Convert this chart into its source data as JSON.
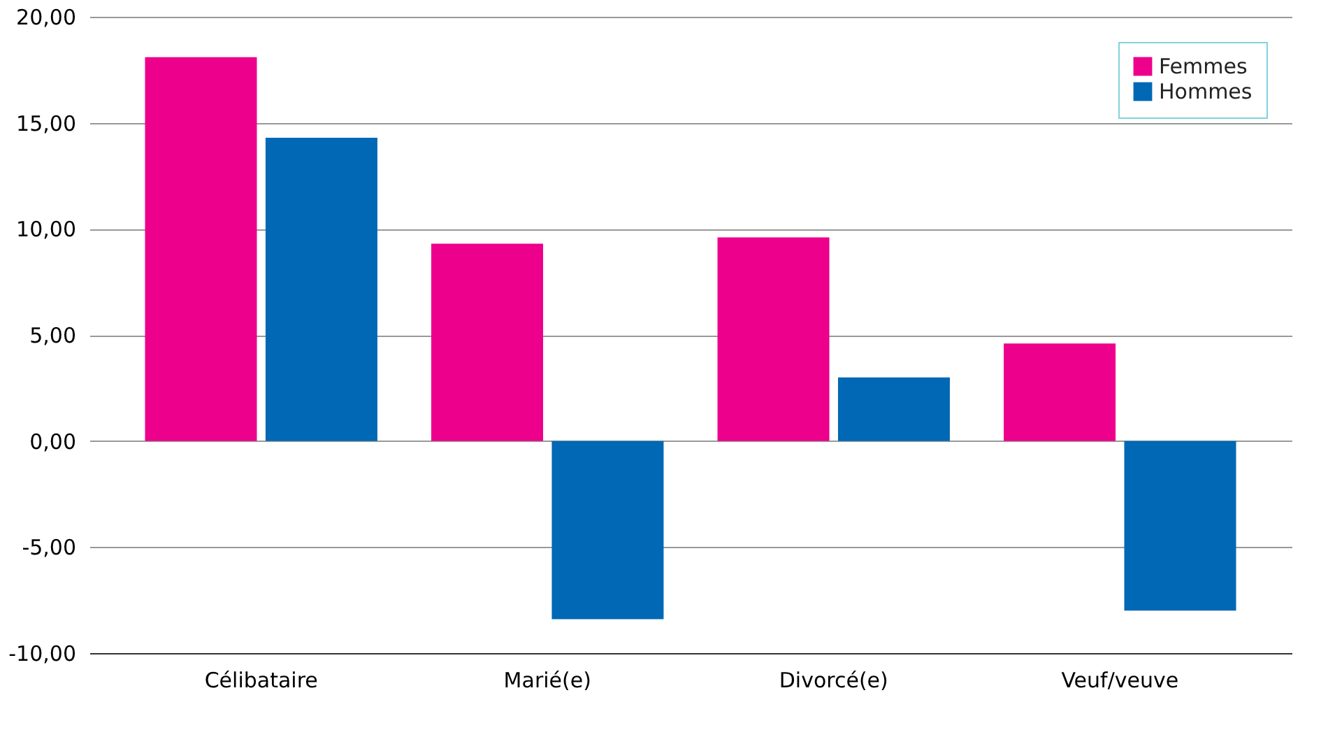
{
  "chart_data": {
    "type": "bar",
    "categories": [
      "Célibataire",
      "Marié(e)",
      "Divorcé(e)",
      "Veuf/veuve"
    ],
    "series": [
      {
        "name": "Femmes",
        "color": "#ec008c",
        "values": [
          18.1,
          9.3,
          9.6,
          4.6
        ]
      },
      {
        "name": "Hommes",
        "color": "#0068b4",
        "values": [
          14.3,
          -8.4,
          3.0,
          -8.0
        ]
      }
    ],
    "ylim": [
      -10,
      20
    ],
    "yticks": [
      {
        "value": -10,
        "label": "-10,00"
      },
      {
        "value": -5,
        "label": "-5,00"
      },
      {
        "value": 0,
        "label": "0,00"
      },
      {
        "value": 5,
        "label": "5,00"
      },
      {
        "value": 10,
        "label": "10,00"
      },
      {
        "value": 15,
        "label": "15,00"
      },
      {
        "value": 20,
        "label": "20,00"
      }
    ],
    "grid": "y",
    "legend": "top right"
  }
}
